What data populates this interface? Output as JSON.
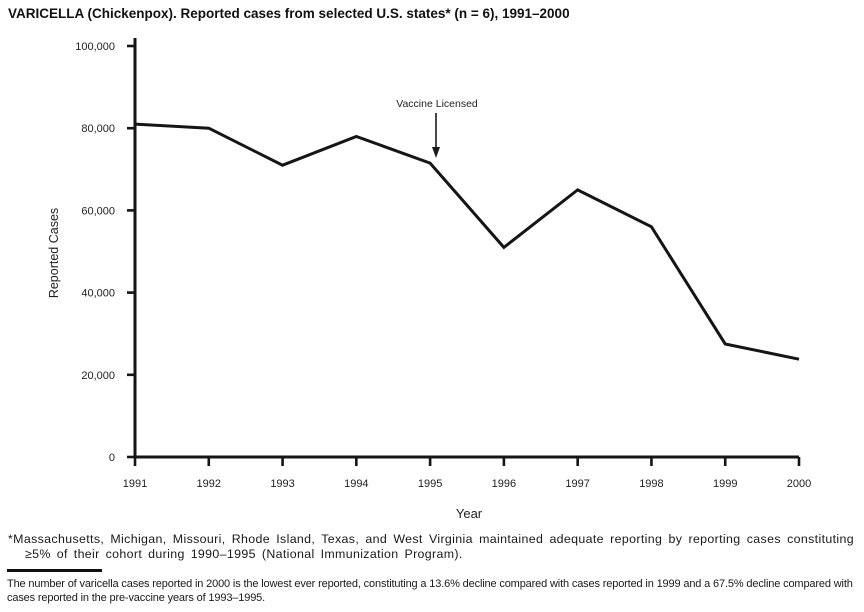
{
  "title": "VARICELLA (Chickenpox). Reported cases from selected U.S. states* (n = 6), 1991–2000",
  "chart_data": {
    "type": "line",
    "x": [
      1991,
      1992,
      1993,
      1994,
      1995,
      1996,
      1997,
      1998,
      1999,
      2000
    ],
    "values": [
      81000,
      80000,
      71000,
      78000,
      71500,
      51000,
      65000,
      56000,
      27500,
      23800
    ],
    "title": "VARICELLA (Chickenpox). Reported cases from selected U.S. states* (n = 6), 1991–2000",
    "xlabel": "Year",
    "ylabel": "Reported Cases",
    "ylim": [
      0,
      100000
    ],
    "y_ticks": [
      0,
      20000,
      40000,
      60000,
      80000,
      100000
    ],
    "y_tick_labels": [
      "0",
      "20,000",
      "40,000",
      "60,000",
      "80,000",
      "100,000"
    ],
    "grid": false,
    "legend": "none",
    "line_color": "#151515",
    "annotation": {
      "text": "Vaccine Licensed",
      "x": 1995,
      "y": 71500
    }
  },
  "footnotes": {
    "states_note": "*Massachusetts, Michigan, Missouri, Rhode Island, Texas, and West Virginia maintained adequate reporting by reporting cases constituting ≥5% of their cohort during 1990–1995 (National Immunization Program).",
    "decline_note": "The number of varicella cases reported in 2000 is the lowest ever reported, constituting a 13.6% decline compared with cases reported in 1999 and a 67.5% decline compared with cases reported in the pre-vaccine years of 1993–1995."
  }
}
